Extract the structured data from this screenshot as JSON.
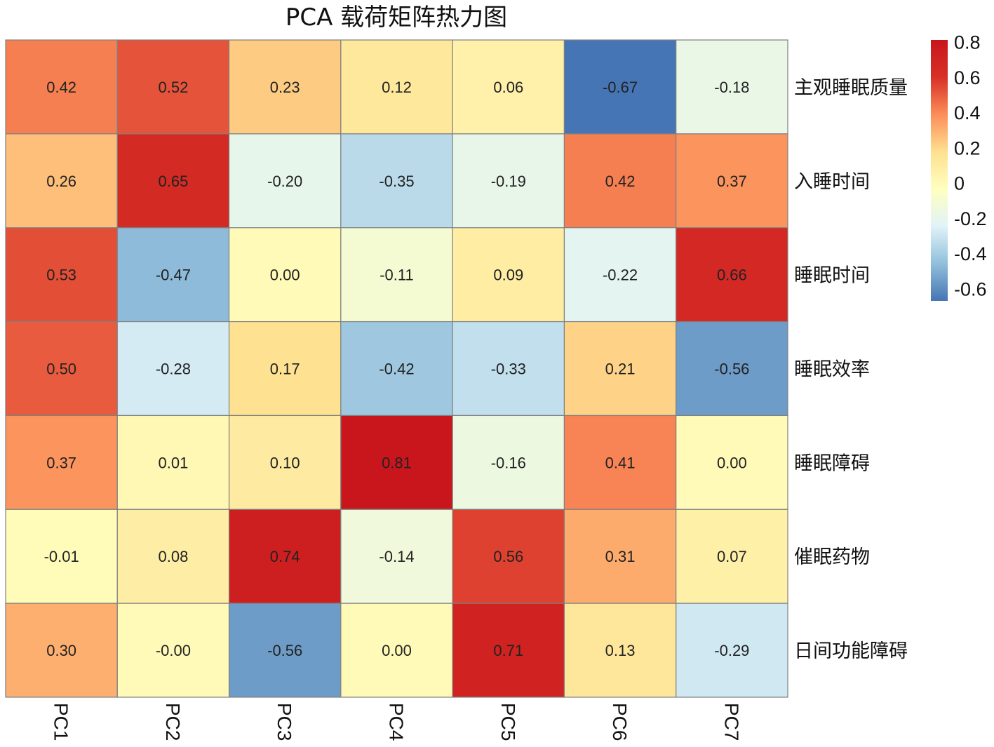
{
  "chart_data": {
    "type": "heatmap",
    "title": "PCA 载荷矩阵热力图",
    "x_categories": [
      "PC1",
      "PC2",
      "PC3",
      "PC4",
      "PC5",
      "PC6",
      "PC7"
    ],
    "y_categories": [
      "主观睡眠质量",
      "入睡时间",
      "睡眠时间",
      "睡眠效率",
      "睡眠障碍",
      "催眠药物",
      "日间功能障碍"
    ],
    "values": [
      [
        0.42,
        0.52,
        0.23,
        0.12,
        0.06,
        -0.67,
        -0.18
      ],
      [
        0.26,
        0.65,
        -0.2,
        -0.35,
        -0.19,
        0.42,
        0.37
      ],
      [
        0.53,
        -0.47,
        0.0,
        -0.11,
        0.09,
        -0.22,
        0.66
      ],
      [
        0.5,
        -0.28,
        0.17,
        -0.42,
        -0.33,
        0.21,
        -0.56
      ],
      [
        0.37,
        0.01,
        0.1,
        0.81,
        -0.16,
        0.41,
        0.0
      ],
      [
        -0.01,
        0.08,
        0.74,
        -0.14,
        0.56,
        0.31,
        0.07
      ],
      [
        0.3,
        -0.0,
        -0.56,
        0.0,
        0.71,
        0.13,
        -0.29
      ]
    ],
    "value_labels": [
      [
        "0.42",
        "0.52",
        "0.23",
        "0.12",
        "0.06",
        "-0.67",
        "-0.18"
      ],
      [
        "0.26",
        "0.65",
        "-0.20",
        "-0.35",
        "-0.19",
        "0.42",
        "0.37"
      ],
      [
        "0.53",
        "-0.47",
        "0.00",
        "-0.11",
        "0.09",
        "-0.22",
        "0.66"
      ],
      [
        "0.50",
        "-0.28",
        "0.17",
        "-0.42",
        "-0.33",
        "0.21",
        "-0.56"
      ],
      [
        "0.37",
        "0.01",
        "0.10",
        "0.81",
        "-0.16",
        "0.41",
        "0.00"
      ],
      [
        "-0.01",
        "0.08",
        "0.74",
        "-0.14",
        "0.56",
        "0.31",
        "0.07"
      ],
      [
        "0.30",
        "-0.00",
        "-0.56",
        "0.00",
        "0.71",
        "0.13",
        "-0.29"
      ]
    ],
    "colorbar": {
      "range": [
        -0.67,
        0.81
      ],
      "ticks": [
        0.8,
        0.6,
        0.4,
        0.2,
        0,
        -0.2,
        -0.4,
        -0.6
      ],
      "tick_labels": [
        "0.8",
        "0.6",
        "0.4",
        "0.2",
        "0",
        "-0.2",
        "-0.4",
        "-0.6"
      ],
      "colormap": [
        "#4575b4",
        "#91bfdb",
        "#e0f3f8",
        "#ffffbf",
        "#fee090",
        "#fc8d59",
        "#d73027",
        "#c8161c"
      ]
    },
    "grid_color": "#808080",
    "legend_placement": "right"
  }
}
